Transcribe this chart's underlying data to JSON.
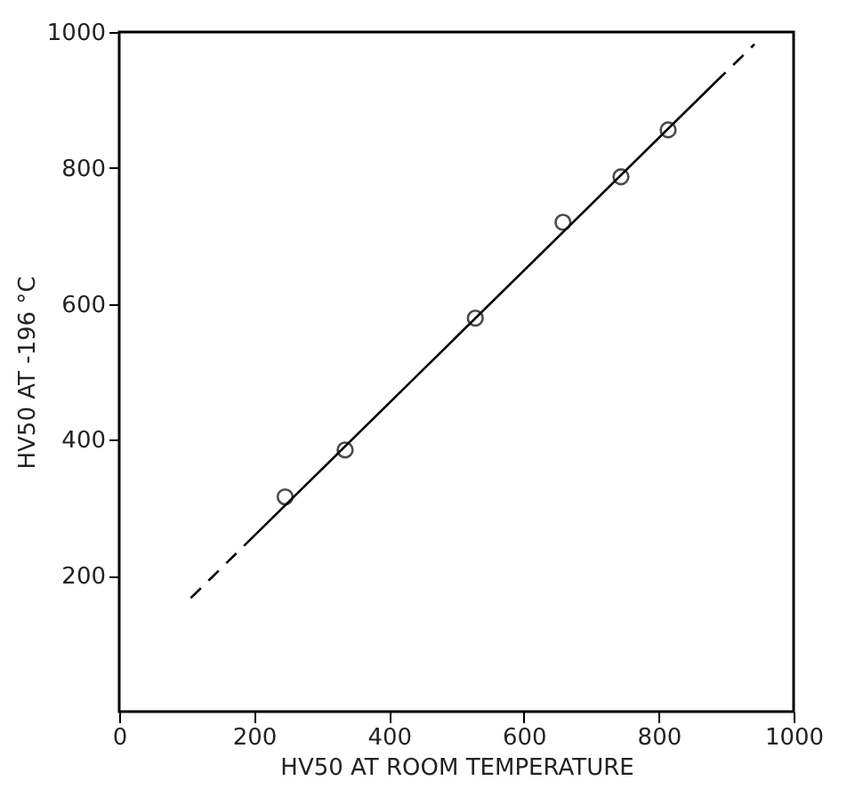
{
  "chart_data": {
    "type": "scatter",
    "xlabel": "HV50 AT ROOM TEMPERATURE",
    "ylabel": "HV50 AT -196 °C",
    "xlim": [
      0,
      1000
    ],
    "ylim": [
      0,
      1000
    ],
    "xticks": [
      0,
      200,
      400,
      600,
      800,
      1000
    ],
    "yticks": [
      200,
      400,
      600,
      800,
      1000
    ],
    "grid": false,
    "marker": "circle",
    "series": [
      {
        "color": "#000000",
        "x": [
          246,
          335,
          528,
          658,
          744,
          814
        ],
        "values": [
          316,
          385,
          579,
          720,
          787,
          856
        ]
      },
      {
        "type": "line",
        "color": "#000000",
        "line_style": "dashed",
        "marker": "none",
        "x": [
          106,
          185
        ],
        "values": [
          167,
          244
        ]
      },
      {
        "type": "line",
        "color": "#000000",
        "line_style": "solid",
        "marker": "none",
        "x": [
          185,
          884
        ],
        "values": [
          244,
          926
        ]
      },
      {
        "type": "line",
        "color": "#000000",
        "line_style": "dashed",
        "marker": "none",
        "x": [
          884,
          942
        ],
        "values": [
          926,
          982
        ]
      }
    ]
  }
}
